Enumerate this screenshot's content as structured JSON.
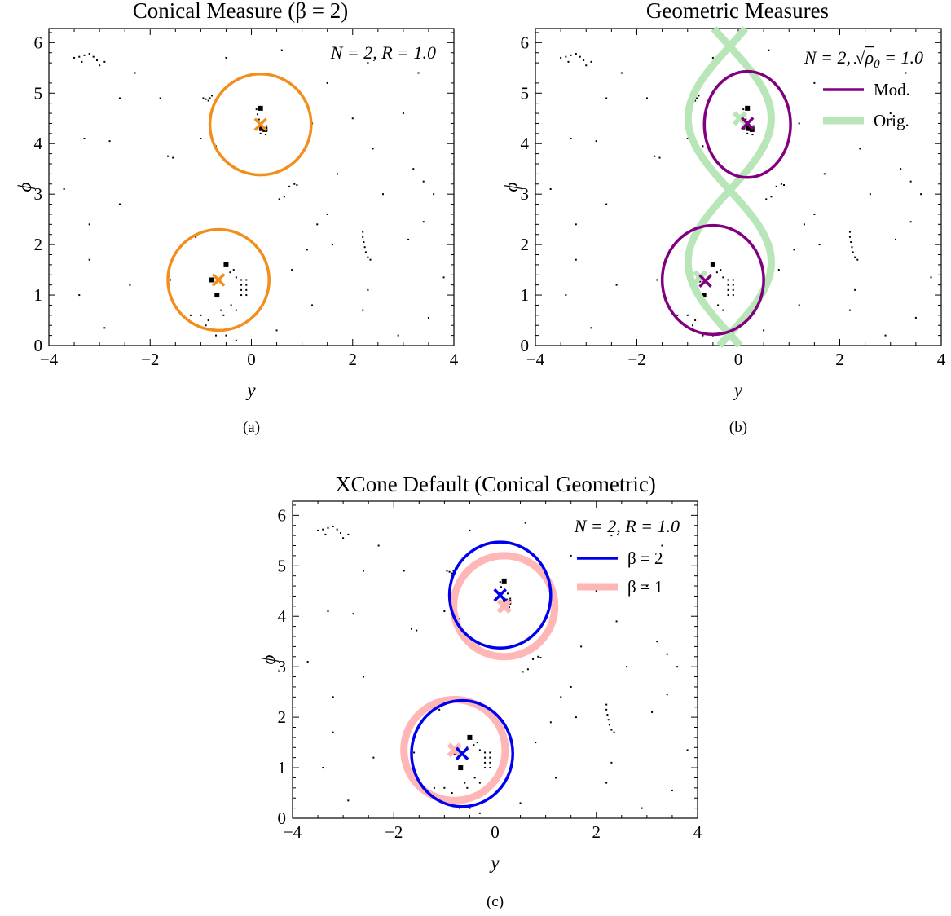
{
  "colors": {
    "orange": "#f28e1c",
    "purple": "#800080",
    "green": "#b8e6b8",
    "blue": "#0000ee",
    "pink": "#ffb6b6",
    "black": "#000000"
  },
  "chart_data": [
    {
      "type": "scatter",
      "id": "a",
      "title": "Conical Measure (β = 2)",
      "xlabel": "y",
      "ylabel": "ϕ",
      "caption": "(a)",
      "xlim": [
        -4,
        4
      ],
      "ylim": [
        0,
        6.28
      ],
      "xticks": [
        "−4",
        "−2",
        "0",
        "2",
        "4"
      ],
      "yticks": [
        "0",
        "1",
        "2",
        "3",
        "4",
        "5",
        "6"
      ],
      "annotation": "N = 2, R = 1.0",
      "jet_axes": [
        {
          "x": 0.18,
          "y": 4.38
        },
        {
          "x": -0.65,
          "y": 1.3
        }
      ],
      "jet_regions": [
        {
          "cx": 0.18,
          "cy": 4.38,
          "rx": 1.0,
          "ry": 1.0
        },
        {
          "cx": -0.65,
          "cy": 1.3,
          "rx": 1.0,
          "ry": 1.0
        }
      ]
    },
    {
      "type": "scatter",
      "id": "b",
      "title": "Geometric Measures",
      "xlabel": "y",
      "ylabel": "ϕ",
      "caption": "(b)",
      "xlim": [
        -4,
        4
      ],
      "ylim": [
        0,
        6.28
      ],
      "xticks": [
        "−4",
        "−2",
        "0",
        "2",
        "4"
      ],
      "yticks": [
        "0",
        "1",
        "2",
        "3",
        "4",
        "5",
        "6"
      ],
      "annotation_prefix": "N = 2, ",
      "annotation_rho": "ρ",
      "annotation_sub": "0",
      "annotation_suffix": " = 1.0",
      "legend": [
        {
          "name": "Mod."
        },
        {
          "name": "Orig."
        }
      ],
      "jet_axes": [
        {
          "x": 0.18,
          "y": 4.4
        },
        {
          "x": -0.65,
          "y": 1.28
        }
      ],
      "orig_axes": [
        {
          "x": 0.03,
          "y": 4.5
        },
        {
          "x": -0.75,
          "y": 1.35
        }
      ],
      "mod_regions": [
        {
          "cx": 0.18,
          "cy": 4.38,
          "rx": 0.85,
          "ry": 1.05
        },
        {
          "cx": -0.5,
          "cy": 1.3,
          "rx": 1.0,
          "ry": 1.08
        }
      ]
    },
    {
      "type": "scatter",
      "id": "c",
      "title": "XCone Default (Conical Geometric)",
      "xlabel": "y",
      "ylabel": "ϕ",
      "caption": "(c)",
      "xlim": [
        -4,
        4
      ],
      "ylim": [
        0,
        6.28
      ],
      "xticks": [
        "−4",
        "−2",
        "0",
        "2",
        "4"
      ],
      "yticks": [
        "0",
        "1",
        "2",
        "3",
        "4",
        "5",
        "6"
      ],
      "annotation": "N = 2, R = 1.0",
      "legend": [
        {
          "name": "β = 2"
        },
        {
          "name": "β = 1"
        }
      ],
      "beta2_axes": [
        {
          "x": 0.1,
          "y": 4.42
        },
        {
          "x": -0.65,
          "y": 1.28
        }
      ],
      "beta1_axes": [
        {
          "x": 0.18,
          "y": 4.2
        },
        {
          "x": -0.8,
          "y": 1.35
        }
      ],
      "beta2_regions": [
        {
          "cx": 0.1,
          "cy": 4.42,
          "rx": 1.0,
          "ry": 1.05
        },
        {
          "cx": -0.65,
          "cy": 1.28,
          "rx": 1.0,
          "ry": 1.05
        }
      ],
      "beta1_regions": [
        {
          "cx": 0.18,
          "cy": 4.2,
          "rx": 1.0,
          "ry": 1.0
        },
        {
          "cx": -0.8,
          "cy": 1.35,
          "rx": 1.0,
          "ry": 1.0
        }
      ]
    }
  ],
  "particles": {
    "big": [
      [
        0.18,
        4.7
      ],
      [
        0.2,
        4.3
      ],
      [
        0.27,
        4.28
      ],
      [
        -0.5,
        1.6
      ],
      [
        -0.78,
        1.3
      ],
      [
        -0.68,
        1.0
      ]
    ],
    "small": [
      [
        0.1,
        4.68
      ],
      [
        0.12,
        4.58
      ],
      [
        0.15,
        4.48
      ],
      [
        0.25,
        4.45
      ],
      [
        0.3,
        4.35
      ],
      [
        0.12,
        4.3
      ],
      [
        0.18,
        4.2
      ],
      [
        0.28,
        4.18
      ],
      [
        -0.95,
        4.9
      ],
      [
        -0.9,
        4.88
      ],
      [
        -0.85,
        4.85
      ],
      [
        -0.82,
        4.9
      ],
      [
        -0.78,
        4.95
      ],
      [
        -0.62,
        1.32
      ],
      [
        -0.55,
        1.4
      ],
      [
        -0.42,
        1.45
      ],
      [
        -0.35,
        1.5
      ],
      [
        -0.3,
        1.35
      ],
      [
        -0.2,
        1.3
      ],
      [
        -0.2,
        1.2
      ],
      [
        -0.2,
        1.1
      ],
      [
        -0.2,
        1.0
      ],
      [
        -0.1,
        1.3
      ],
      [
        -0.1,
        1.2
      ],
      [
        -0.1,
        1.1
      ],
      [
        -0.1,
        1.0
      ],
      [
        -0.6,
        0.7
      ],
      [
        -0.55,
        0.6
      ],
      [
        -0.85,
        0.5
      ],
      [
        -1.0,
        0.6
      ],
      [
        -0.9,
        0.4
      ],
      [
        -0.7,
        0.2
      ],
      [
        -0.4,
        0.8
      ],
      [
        -0.3,
        0.7
      ],
      [
        -3.5,
        5.7
      ],
      [
        -3.4,
        5.72
      ],
      [
        -3.3,
        5.75
      ],
      [
        -3.2,
        5.78
      ],
      [
        -3.12,
        5.72
      ],
      [
        -3.05,
        5.65
      ],
      [
        -3.0,
        5.55
      ],
      [
        -3.35,
        5.62
      ],
      [
        -2.9,
        5.62
      ],
      [
        -2.3,
        5.4
      ],
      [
        -2.6,
        4.9
      ],
      [
        -1.8,
        4.9
      ],
      [
        -3.3,
        4.1
      ],
      [
        -2.8,
        4.05
      ],
      [
        -1.65,
        3.75
      ],
      [
        -1.55,
        3.72
      ],
      [
        -1.0,
        4.1
      ],
      [
        -0.7,
        3.95
      ],
      [
        0.75,
        3.15
      ],
      [
        0.85,
        3.2
      ],
      [
        0.9,
        3.18
      ],
      [
        0.55,
        2.9
      ],
      [
        0.65,
        2.95
      ],
      [
        1.3,
        2.4
      ],
      [
        1.5,
        2.6
      ],
      [
        1.6,
        2.0
      ],
      [
        2.2,
        2.25
      ],
      [
        2.2,
        2.15
      ],
      [
        2.22,
        2.05
      ],
      [
        2.24,
        1.95
      ],
      [
        2.26,
        1.85
      ],
      [
        2.3,
        1.75
      ],
      [
        2.35,
        1.7
      ],
      [
        3.1,
        2.1
      ],
      [
        3.4,
        2.45
      ],
      [
        3.2,
        3.5
      ],
      [
        3.4,
        3.25
      ],
      [
        3.6,
        3.0
      ],
      [
        2.6,
        3.0
      ],
      [
        3.8,
        1.35
      ],
      [
        2.3,
        1.1
      ],
      [
        2.2,
        0.7
      ],
      [
        3.5,
        0.55
      ],
      [
        2.9,
        0.2
      ],
      [
        1.2,
        0.8
      ],
      [
        0.8,
        1.5
      ],
      [
        1.1,
        1.9
      ],
      [
        -1.1,
        2.15
      ],
      [
        -2.6,
        2.8
      ],
      [
        -3.2,
        2.4
      ],
      [
        -2.4,
        1.2
      ],
      [
        -3.4,
        1.0
      ],
      [
        -1.6,
        1.3
      ],
      [
        -2.9,
        0.35
      ],
      [
        -1.2,
        0.6
      ],
      [
        0.5,
        0.3
      ],
      [
        1.5,
        5.2
      ],
      [
        2.3,
        5.6
      ],
      [
        3.3,
        5.4
      ],
      [
        3.0,
        4.6
      ],
      [
        2.0,
        4.5
      ],
      [
        1.2,
        4.4
      ],
      [
        -0.5,
        5.7
      ],
      [
        0.6,
        5.85
      ],
      [
        2.4,
        3.9
      ],
      [
        1.7,
        3.4
      ],
      [
        -3.7,
        3.1
      ],
      [
        -3.2,
        1.7
      ],
      [
        -0.5,
        0.2
      ],
      [
        -0.3,
        0.1
      ]
    ]
  }
}
